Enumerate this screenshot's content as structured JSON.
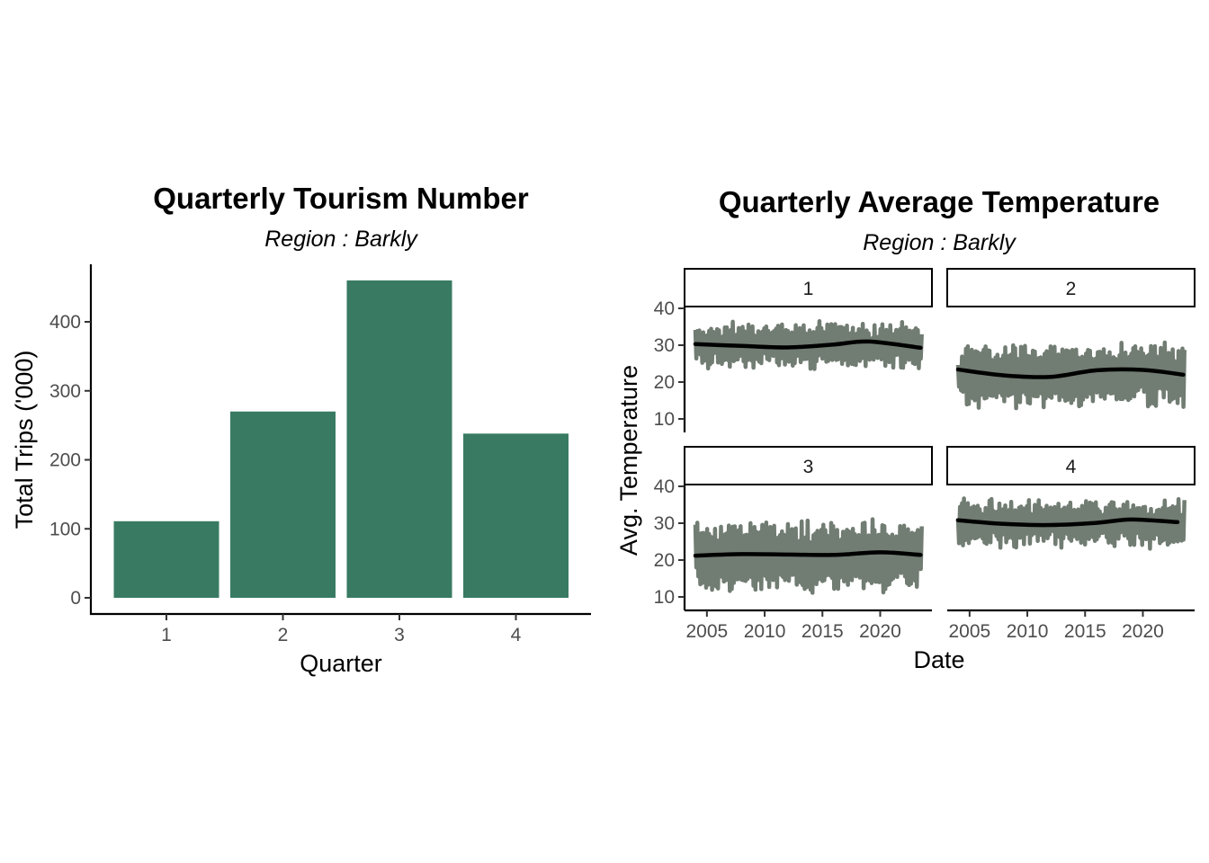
{
  "colors": {
    "bar_fill": "#387B62",
    "temp_line": "#717C72",
    "smooth_line": "#000000"
  },
  "chart_data": [
    {
      "type": "bar",
      "title": "Quarterly Tourism Number",
      "subtitle": "Region : Barkly",
      "xlabel": "Quarter",
      "ylabel": "Total Trips ('000)",
      "categories": [
        "1",
        "2",
        "3",
        "4"
      ],
      "values": [
        111,
        270,
        460,
        238
      ],
      "ylim": [
        0,
        480
      ],
      "yticks": [
        0,
        100,
        200,
        300,
        400
      ],
      "grid": false
    },
    {
      "type": "line",
      "title": "Quarterly Average Temperature",
      "subtitle": "Region : Barkly",
      "xlabel": "Date",
      "ylabel": "Avg. Temperature",
      "xlim": [
        2004,
        2024
      ],
      "xticks": [
        2005,
        2010,
        2015,
        2020
      ],
      "ylim": [
        6,
        50
      ],
      "yticks": [
        10,
        20,
        30,
        40
      ],
      "grid": false,
      "facets": [
        {
          "label": "1",
          "mean": 30,
          "amplitude": 5,
          "smooth": [
            [
              2004,
              30.3
            ],
            [
              2008,
              29.8
            ],
            [
              2012,
              29.4
            ],
            [
              2016,
              30.2
            ],
            [
              2019,
              31.0
            ],
            [
              2023.5,
              29.3
            ]
          ]
        },
        {
          "label": "2",
          "mean": 22,
          "amplitude": 7,
          "smooth": [
            [
              2004,
              23.4
            ],
            [
              2008,
              21.8
            ],
            [
              2012,
              21.4
            ],
            [
              2016,
              23.2
            ],
            [
              2020,
              23.3
            ],
            [
              2023.5,
              22.0
            ]
          ]
        },
        {
          "label": "3",
          "mean": 21,
          "amplitude": 8,
          "smooth": [
            [
              2004,
              21.2
            ],
            [
              2008,
              21.6
            ],
            [
              2012,
              21.5
            ],
            [
              2016,
              21.4
            ],
            [
              2020,
              22.1
            ],
            [
              2023.5,
              21.4
            ]
          ]
        },
        {
          "label": "4",
          "mean": 30,
          "amplitude": 5,
          "smooth": [
            [
              2004,
              30.8
            ],
            [
              2008,
              29.8
            ],
            [
              2012,
              29.5
            ],
            [
              2016,
              30.1
            ],
            [
              2019,
              31.0
            ],
            [
              2023,
              30.3
            ]
          ]
        }
      ]
    }
  ]
}
